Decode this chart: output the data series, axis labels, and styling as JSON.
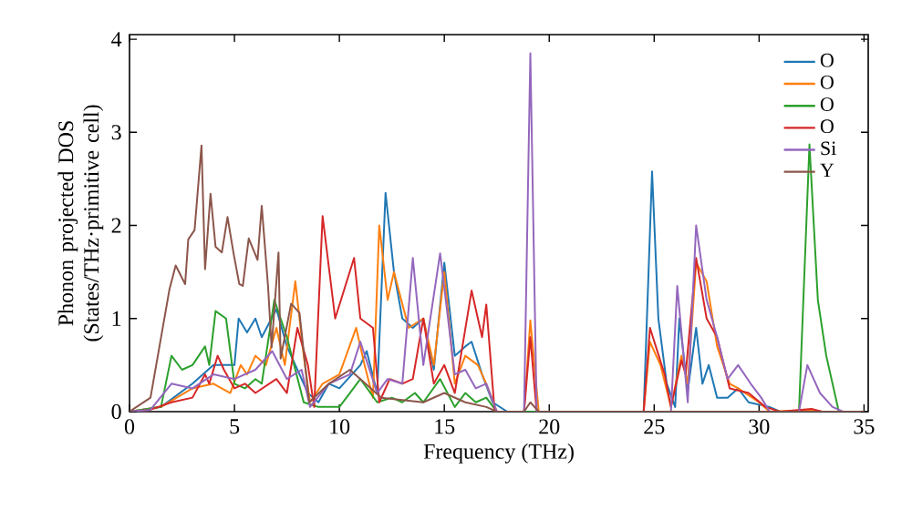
{
  "chart_data": {
    "type": "line",
    "xlabel": "Frequency (THz)",
    "ylabel": "Phonon projected DOS (States/THz·primitive cell)",
    "xlim": [
      0,
      35.2
    ],
    "ylim": [
      0,
      4.05
    ],
    "xticks": [
      0,
      5,
      10,
      15,
      20,
      25,
      30,
      35
    ],
    "yticks": [
      0,
      1,
      2,
      3,
      4
    ],
    "legend": "top right",
    "marker": "none",
    "line_style": "solid",
    "series": [
      {
        "name": "O",
        "color": "#1f77b4",
        "x": [
          0,
          1.5,
          3,
          4,
          4.5,
          5,
          5.2,
          5.6,
          6,
          6.3,
          7,
          7.5,
          8.5,
          9,
          9.5,
          10,
          11,
          11.3,
          11.8,
          12.2,
          12.6,
          13,
          13.5,
          14,
          14.5,
          15,
          15.5,
          16,
          16.3,
          16.8,
          17.3,
          18,
          24.5,
          24.9,
          25.2,
          25.6,
          26,
          26.2,
          26.6,
          27,
          27.3,
          27.6,
          28,
          28.5,
          29,
          29.5,
          30.5,
          31,
          35
        ],
        "values": [
          0,
          0.05,
          0.3,
          0.5,
          0.5,
          0.5,
          1.0,
          0.85,
          1.0,
          0.8,
          1.1,
          0.7,
          0.2,
          0.1,
          0.3,
          0.25,
          0.5,
          0.65,
          0.2,
          2.35,
          1.5,
          1.0,
          0.9,
          1.0,
          0.45,
          1.6,
          0.6,
          0.7,
          0.75,
          0.4,
          0.1,
          0,
          0,
          2.58,
          1.0,
          0.3,
          0.05,
          1.0,
          0.22,
          0.9,
          0.3,
          0.5,
          0.15,
          0.15,
          0.25,
          0.1,
          0.05,
          0,
          0
        ]
      },
      {
        "name": "O",
        "color": "#ff7f0e",
        "x": [
          0,
          1.5,
          3,
          4,
          4.8,
          5.3,
          5.6,
          6,
          6.5,
          7,
          7.4,
          7.9,
          8.3,
          8.6,
          9.2,
          10,
          10.8,
          11.2,
          11.6,
          11.9,
          12.3,
          12.6,
          13.3,
          14,
          14.5,
          15,
          15.5,
          16,
          16.6,
          17,
          17.5,
          18.8,
          19.1,
          19.5,
          24.5,
          24.8,
          25.3,
          25.8,
          26.3,
          26.6,
          27,
          27.5,
          28,
          28.6,
          29,
          30,
          30.5,
          32.5,
          33,
          35
        ],
        "values": [
          0,
          0.05,
          0.25,
          0.3,
          0.2,
          0.5,
          0.4,
          0.6,
          0.5,
          0.9,
          0.5,
          1.4,
          0.6,
          0.1,
          0.3,
          0.4,
          0.9,
          0.5,
          0.15,
          2.0,
          1.2,
          1.5,
          0.9,
          1.0,
          0.5,
          1.5,
          0.3,
          0.6,
          0.5,
          0.3,
          0,
          0,
          0.98,
          0,
          0,
          0.75,
          0.5,
          0.05,
          0.6,
          0.3,
          1.6,
          1.4,
          0.7,
          0.3,
          0.25,
          0.1,
          0,
          0.02,
          0,
          0
        ]
      },
      {
        "name": "O",
        "color": "#2ca02c",
        "x": [
          0,
          1.5,
          2,
          2.5,
          3,
          3.6,
          3.8,
          4.1,
          4.6,
          5,
          5.5,
          6,
          6.3,
          6.9,
          7.5,
          8.3,
          9,
          10,
          10.5,
          11,
          11.8,
          12.5,
          13,
          13.6,
          14,
          14.8,
          15.5,
          16,
          16.5,
          17,
          17.5,
          31.9,
          32.4,
          32.8,
          33.2,
          33.8,
          35
        ],
        "values": [
          0,
          0.05,
          0.6,
          0.45,
          0.5,
          0.7,
          0.5,
          1.08,
          1.0,
          0.3,
          0.25,
          0.35,
          0.3,
          1.2,
          0.8,
          0.1,
          0.05,
          0.05,
          0.2,
          0.35,
          0.1,
          0.15,
          0.1,
          0.2,
          0.1,
          0.35,
          0.05,
          0.2,
          0.1,
          0.15,
          0,
          0,
          2.87,
          1.2,
          0.6,
          0,
          0
        ]
      },
      {
        "name": "O",
        "color": "#d62728",
        "x": [
          0,
          1,
          2,
          3,
          3.6,
          3.8,
          4.2,
          4.5,
          5,
          5.5,
          6,
          7,
          7.5,
          8,
          8.5,
          8.8,
          9.2,
          9.8,
          10.7,
          11,
          11.6,
          11.9,
          12.4,
          13,
          13.5,
          14,
          14.5,
          15,
          15.5,
          16.3,
          16.8,
          17,
          17.4,
          18.8,
          19.1,
          19.4,
          24.5,
          24.8,
          25.5,
          25.8,
          26.3,
          26.5,
          27,
          27.5,
          28,
          28.6,
          29.5,
          30.3,
          31,
          32.5,
          33,
          35
        ],
        "values": [
          0,
          0.02,
          0.1,
          0.15,
          0.4,
          0.3,
          0.6,
          0.45,
          0.25,
          0.3,
          0.2,
          0.35,
          0.2,
          0.9,
          0.5,
          0.05,
          2.1,
          1.0,
          1.65,
          1.0,
          0.9,
          0.1,
          0.35,
          0.3,
          0.35,
          1.0,
          0.3,
          0.5,
          0.2,
          1.3,
          0.8,
          1.15,
          0,
          0,
          0.8,
          0,
          0,
          0.9,
          0.4,
          0.05,
          0.55,
          0.4,
          1.65,
          1.0,
          0.8,
          0.25,
          0.2,
          0.05,
          0,
          0.03,
          0,
          0
        ]
      },
      {
        "name": "Si",
        "color": "#9467bd",
        "x": [
          0,
          1,
          2,
          3,
          4,
          5,
          6,
          6.8,
          7.5,
          8.2,
          8.6,
          9.5,
          10.5,
          11,
          11.8,
          12.3,
          13,
          13.5,
          14,
          14.8,
          15.5,
          16,
          16.5,
          17,
          17.5,
          18.8,
          19.1,
          19.4,
          25.8,
          26.1,
          26.6,
          27,
          27.5,
          28,
          28.5,
          29,
          29.6,
          30.1,
          30.5,
          31.9,
          32.3,
          32.9,
          33.5,
          34,
          35
        ],
        "values": [
          0,
          0.02,
          0.3,
          0.25,
          0.4,
          0.35,
          0.45,
          0.65,
          0.35,
          0.45,
          0.05,
          0.3,
          0.4,
          0.75,
          0.2,
          0.35,
          0.3,
          1.65,
          0.5,
          1.7,
          0.4,
          0.45,
          0.25,
          0.3,
          0,
          0,
          3.85,
          0,
          0,
          1.35,
          0.1,
          2.0,
          1.2,
          0.8,
          0.35,
          0.5,
          0.3,
          0.15,
          0,
          0,
          0.5,
          0.2,
          0.05,
          0,
          0
        ]
      },
      {
        "name": "Y",
        "color": "#8c564b",
        "x": [
          0,
          1,
          1.9,
          2.2,
          2.65,
          2.8,
          3.1,
          3.43,
          3.6,
          3.86,
          4.1,
          4.4,
          4.67,
          4.95,
          5.23,
          5.4,
          5.68,
          6.1,
          6.3,
          6.6,
          6.77,
          7.1,
          7.2,
          7.7,
          8.1,
          8.56,
          9.5,
          10.5,
          11,
          12,
          14,
          15,
          16,
          17,
          17.5,
          18.8,
          19.1,
          19.5,
          35
        ],
        "values": [
          0,
          0.15,
          1.31,
          1.57,
          1.37,
          1.85,
          1.95,
          2.86,
          1.53,
          2.34,
          1.77,
          1.71,
          2.09,
          1.71,
          1.37,
          1.35,
          1.86,
          1.63,
          2.21,
          1.35,
          0.69,
          1.71,
          0.57,
          1.16,
          1.06,
          0.1,
          0.3,
          0.45,
          0.35,
          0.15,
          0.1,
          0.2,
          0.1,
          0.05,
          0,
          0,
          0.1,
          0,
          0
        ]
      }
    ]
  }
}
